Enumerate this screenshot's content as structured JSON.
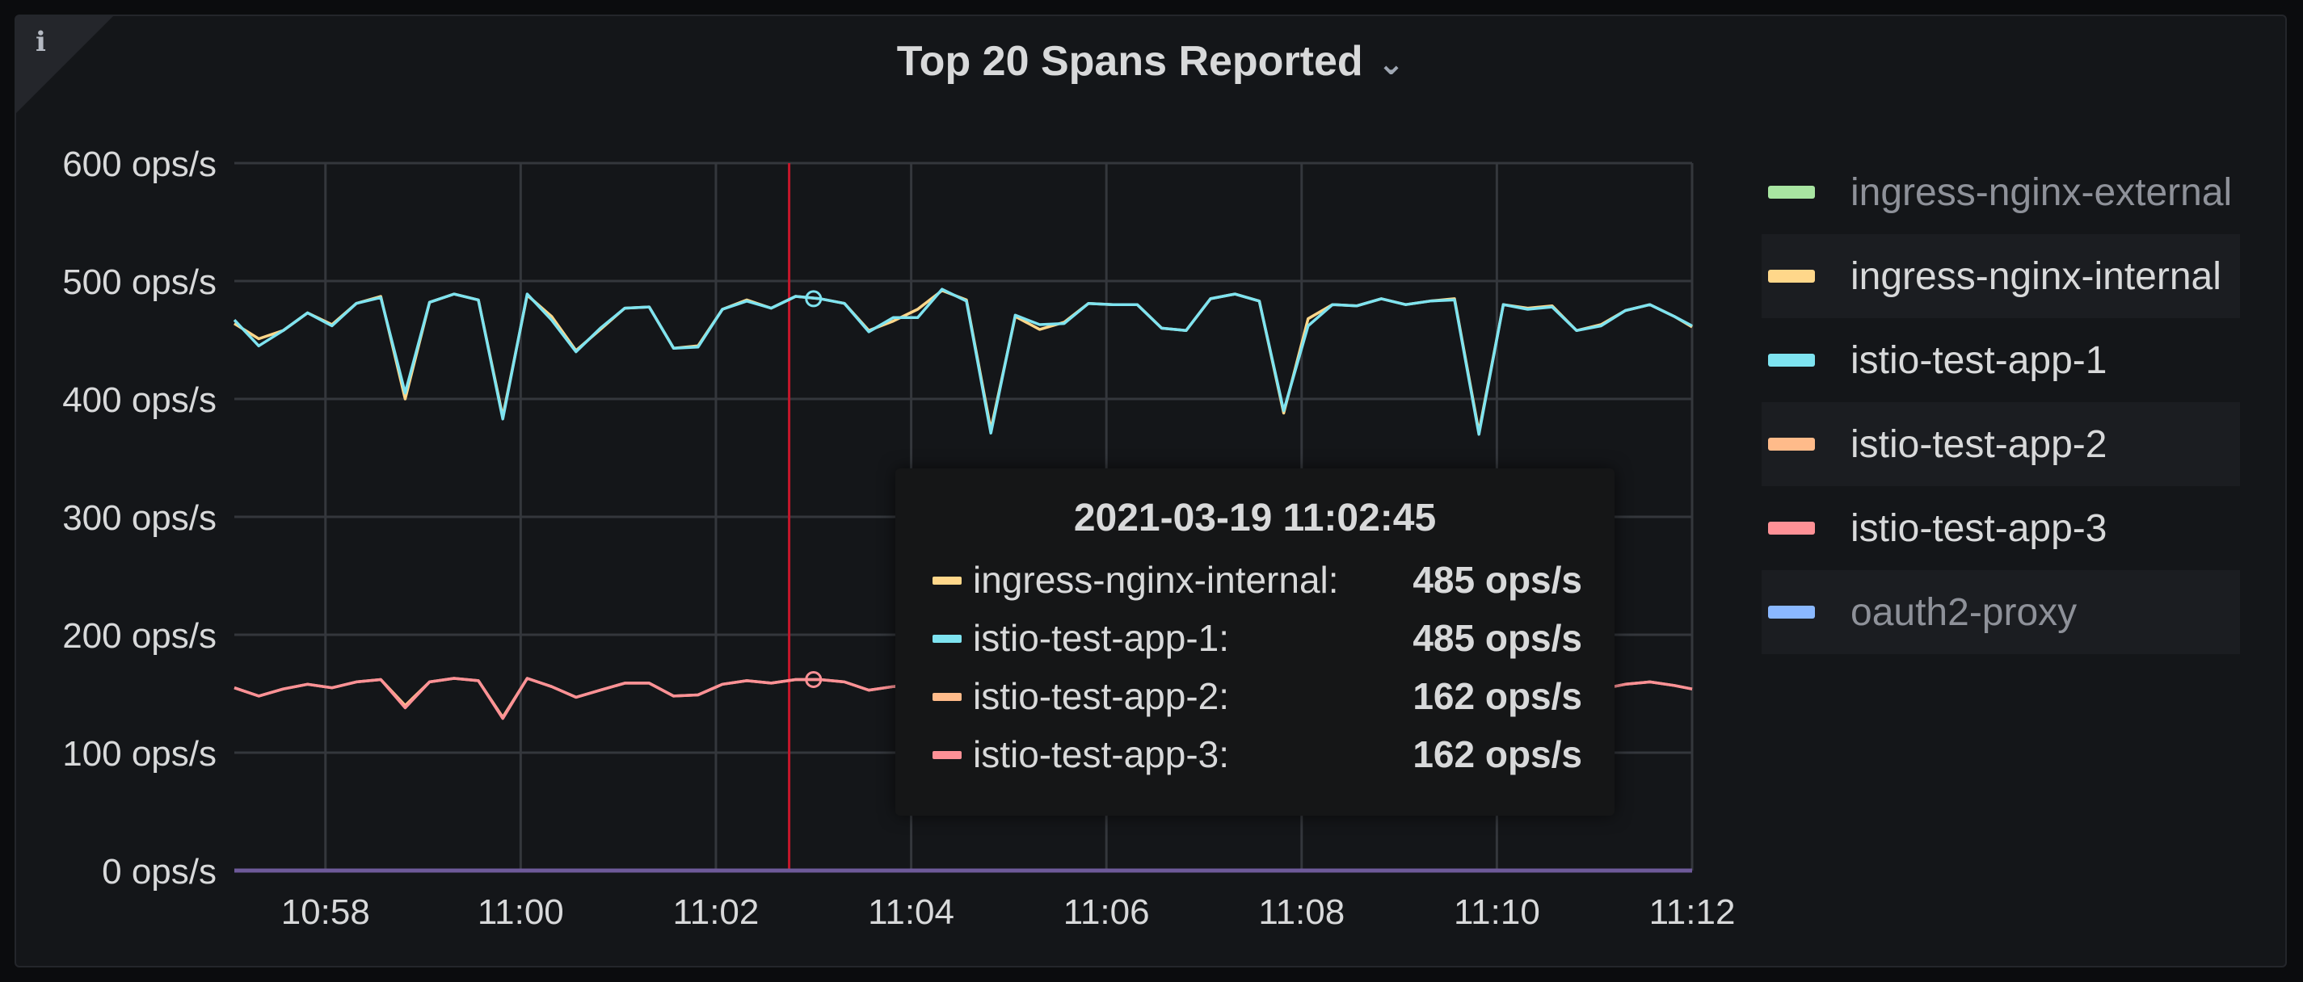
{
  "panel": {
    "title": "Top 20 Spans Reported",
    "info_glyph": "i",
    "title_chevron": "⌄",
    "info_icon": "info-icon"
  },
  "chart_data": {
    "type": "line",
    "title": "Top 20 Spans Reported",
    "xlabel": "",
    "ylabel": "",
    "unit": "ops/s",
    "ylim": [
      0,
      600
    ],
    "yticks": [
      "0 ops/s",
      "100 ops/s",
      "200 ops/s",
      "300 ops/s",
      "400 ops/s",
      "500 ops/s",
      "600 ops/s"
    ],
    "xticks": [
      "10:58",
      "11:00",
      "11:02",
      "11:04",
      "11:06",
      "11:08",
      "11:10",
      "11:12"
    ],
    "x_start": "10:57:04",
    "x_end": "11:12:00",
    "grid": true,
    "legend_position": "right",
    "x": [
      "10:57:04",
      "10:57:19",
      "10:57:34",
      "10:57:49",
      "10:58:04",
      "10:58:19",
      "10:58:34",
      "10:58:49",
      "10:59:04",
      "10:59:19",
      "10:59:34",
      "10:59:49",
      "11:00:04",
      "11:00:19",
      "11:00:34",
      "11:00:49",
      "11:01:04",
      "11:01:19",
      "11:01:34",
      "11:01:49",
      "11:02:04",
      "11:02:19",
      "11:02:34",
      "11:02:49",
      "11:03:04",
      "11:03:19",
      "11:03:34",
      "11:03:49",
      "11:04:04",
      "11:04:19",
      "11:04:34",
      "11:04:49",
      "11:05:04",
      "11:05:19",
      "11:05:34",
      "11:05:49",
      "11:06:04",
      "11:06:19",
      "11:06:34",
      "11:06:49",
      "11:07:04",
      "11:07:19",
      "11:07:34",
      "11:07:49",
      "11:08:04",
      "11:08:19",
      "11:08:34",
      "11:08:49",
      "11:09:04",
      "11:09:19",
      "11:09:34",
      "11:09:49",
      "11:10:04",
      "11:10:19",
      "11:10:34",
      "11:10:49",
      "11:11:04",
      "11:11:19",
      "11:11:34",
      "11:11:49",
      "11:12:00"
    ],
    "series": [
      {
        "name": "ingress-nginx-external",
        "color": "#a8e5a1",
        "values": [
          0,
          0,
          0,
          0,
          0,
          0,
          0,
          0,
          0,
          0,
          0,
          0,
          0,
          0,
          0,
          0,
          0,
          0,
          0,
          0,
          0,
          0,
          0,
          0,
          0,
          0,
          0,
          0,
          0,
          0,
          0,
          0,
          0,
          0,
          0,
          0,
          0,
          0,
          0,
          0,
          0,
          0,
          0,
          0,
          0,
          0,
          0,
          0,
          0,
          0,
          0,
          0,
          0,
          0,
          0,
          0,
          0,
          0,
          0,
          0,
          0
        ]
      },
      {
        "name": "ingress-nginx-internal",
        "color": "#ffd78a",
        "values": [
          464,
          451,
          458,
          473,
          463,
          481,
          487,
          400,
          482,
          489,
          484,
          385,
          488,
          470,
          441,
          459,
          477,
          478,
          443,
          445,
          476,
          484,
          477,
          487,
          485,
          481,
          458,
          466,
          476,
          492,
          484,
          374,
          470,
          459,
          465,
          481,
          480,
          480,
          460,
          458,
          485,
          489,
          483,
          388,
          468,
          480,
          479,
          485,
          480,
          483,
          485,
          372,
          480,
          477,
          479,
          458,
          463,
          475,
          480,
          470,
          461
        ]
      },
      {
        "name": "istio-test-app-1",
        "color": "#7ee3f0",
        "values": [
          467,
          445,
          458,
          473,
          462,
          481,
          486,
          405,
          482,
          489,
          484,
          383,
          489,
          467,
          440,
          460,
          477,
          478,
          443,
          444,
          476,
          483,
          477,
          487,
          485,
          481,
          457,
          469,
          469,
          493,
          483,
          371,
          471,
          463,
          464,
          481,
          480,
          480,
          460,
          458,
          485,
          489,
          483,
          390,
          462,
          480,
          479,
          485,
          480,
          483,
          484,
          370,
          480,
          476,
          478,
          458,
          462,
          475,
          480,
          470,
          462
        ]
      },
      {
        "name": "istio-test-app-2",
        "color": "#ffbb8a",
        "values": [
          155,
          148,
          154,
          158,
          155,
          160,
          162,
          140,
          160,
          163,
          161,
          130,
          163,
          156,
          147,
          153,
          159,
          159,
          148,
          149,
          158,
          161,
          159,
          162,
          162,
          160,
          153,
          156,
          158,
          164,
          161,
          125,
          157,
          153,
          155,
          160,
          160,
          160,
          153,
          152,
          161,
          163,
          161,
          130,
          156,
          160,
          159,
          162,
          160,
          161,
          162,
          124,
          160,
          159,
          159,
          153,
          154,
          158,
          160,
          157,
          154
        ]
      },
      {
        "name": "istio-test-app-3",
        "color": "#ff9196",
        "values": [
          155,
          148,
          154,
          158,
          155,
          160,
          162,
          138,
          160,
          163,
          161,
          129,
          163,
          156,
          147,
          153,
          159,
          159,
          148,
          149,
          158,
          161,
          159,
          162,
          162,
          160,
          153,
          156,
          158,
          164,
          161,
          124,
          157,
          153,
          155,
          160,
          160,
          160,
          153,
          152,
          161,
          163,
          161,
          129,
          156,
          160,
          159,
          162,
          160,
          161,
          162,
          123,
          160,
          159,
          159,
          153,
          154,
          158,
          160,
          157,
          154
        ]
      },
      {
        "name": "oauth2-proxy",
        "color": "#8ab8ff",
        "values": [
          0,
          0,
          0,
          0,
          0,
          0,
          0,
          0,
          0,
          0,
          0,
          0,
          0,
          0,
          0,
          0,
          0,
          0,
          0,
          0,
          0,
          0,
          0,
          0,
          0,
          0,
          0,
          0,
          0,
          0,
          0,
          0,
          0,
          0,
          0,
          0,
          0,
          0,
          0,
          0,
          0,
          0,
          0,
          0,
          0,
          0,
          0,
          0,
          0,
          0,
          0,
          0,
          0,
          0,
          0,
          0,
          0,
          0,
          0,
          0,
          0
        ]
      }
    ],
    "cursor_time": "11:02:45",
    "hover_time": "11:03:00",
    "cursor_color": "#c4162a",
    "hover_points": [
      485,
      162
    ]
  },
  "legend": {
    "items": [
      {
        "label": "ingress-nginx-external",
        "color": "#a8e5a1",
        "dim": true
      },
      {
        "label": "ingress-nginx-internal",
        "color": "#ffd78a",
        "dim": false
      },
      {
        "label": "istio-test-app-1",
        "color": "#7ee3f0",
        "dim": false
      },
      {
        "label": "istio-test-app-2",
        "color": "#ffbb8a",
        "dim": false
      },
      {
        "label": "istio-test-app-3",
        "color": "#ff9196",
        "dim": false
      },
      {
        "label": "oauth2-proxy",
        "color": "#8ab8ff",
        "dim": true
      }
    ]
  },
  "tooltip": {
    "time": "2021-03-19 11:02:45",
    "rows": [
      {
        "name": "ingress-nginx-internal:",
        "value": "485 ops/s",
        "color": "#ffd78a"
      },
      {
        "name": "istio-test-app-1:",
        "value": "485 ops/s",
        "color": "#7ee3f0"
      },
      {
        "name": "istio-test-app-2:",
        "value": "162 ops/s",
        "color": "#ffbb8a"
      },
      {
        "name": "istio-test-app-3:",
        "value": "162 ops/s",
        "color": "#ff9196"
      }
    ]
  }
}
